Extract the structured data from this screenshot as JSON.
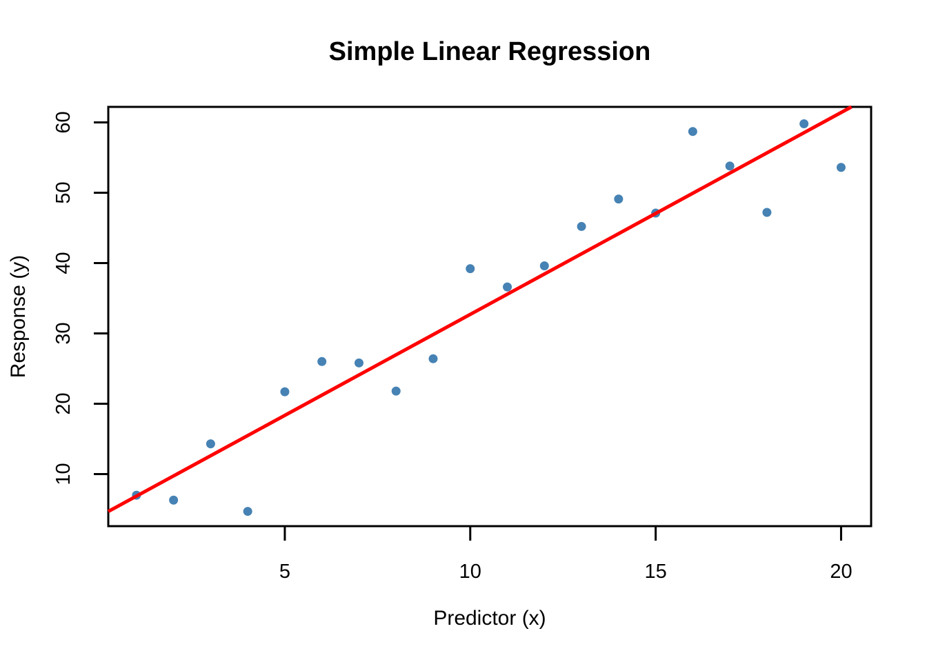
{
  "title": "Simple Linear Regression",
  "chart_data": {
    "type": "scatter",
    "title": "Simple Linear Regression",
    "xlabel": "Predictor (x)",
    "ylabel": "Response (y)",
    "x": [
      1,
      2,
      3,
      4,
      5,
      6,
      7,
      8,
      9,
      10,
      11,
      12,
      13,
      14,
      15,
      16,
      17,
      18,
      19,
      20
    ],
    "y": [
      7.0,
      6.3,
      14.3,
      4.7,
      21.7,
      26.0,
      25.8,
      21.8,
      26.4,
      39.2,
      36.6,
      39.6,
      45.2,
      49.1,
      47.1,
      58.7,
      53.8,
      47.2,
      59.8,
      53.6
    ],
    "x_ticks": [
      5,
      10,
      15,
      20
    ],
    "y_ticks": [
      10,
      20,
      30,
      40,
      50,
      60
    ],
    "xlim": [
      0.24,
      20.81
    ],
    "ylim": [
      2.6,
      62.2
    ],
    "grid": false,
    "legend": null,
    "point_color": "#4682b4",
    "axis_color": "#000000",
    "background_color": "#ffffff",
    "regression_line": {
      "intercept": 4.0,
      "slope": 2.87,
      "color": "#ff0000"
    }
  }
}
